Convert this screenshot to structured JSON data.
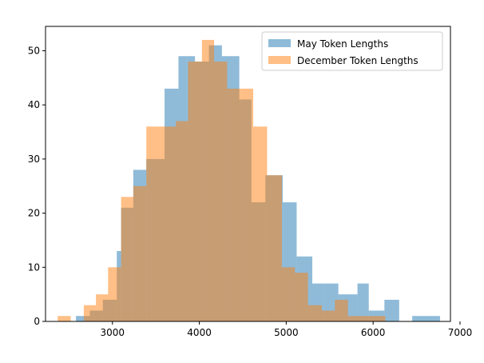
{
  "chart_data": {
    "type": "histogram",
    "title": "",
    "xlabel": "",
    "ylabel": "",
    "xlim": [
      2230,
      6890
    ],
    "ylim": [
      0,
      54.5
    ],
    "xticks": [
      3000,
      4000,
      5000,
      6000,
      7000
    ],
    "xtick_labels": [
      "3000",
      "4000",
      "5000",
      "6000",
      "7000"
    ],
    "yticks": [
      0,
      10,
      20,
      30,
      40,
      50
    ],
    "ytick_labels": [
      "0",
      "10",
      "20",
      "30",
      "40",
      "50"
    ],
    "legend_position": "upper right",
    "grid": false,
    "series": [
      {
        "name": "May Token Lengths",
        "color": "#1f77b4",
        "alpha": 0.5,
        "bin_edges": [
          2580,
          2740,
          2890,
          3050,
          3100,
          3240,
          3390,
          3600,
          3760,
          3860,
          3950,
          4110,
          4260,
          4460,
          4600,
          4760,
          4960,
          5120,
          5300,
          5430,
          5600,
          5820,
          5950,
          6130,
          6300,
          6450,
          6770
        ],
        "counts": [
          1,
          2,
          4,
          13,
          21,
          28,
          30,
          43,
          49,
          49,
          48,
          51,
          49,
          41,
          22,
          27,
          22,
          12,
          7,
          7,
          5,
          7,
          2,
          4,
          0,
          1
        ]
      },
      {
        "name": "December Token Lengths",
        "color": "#ff7f0e",
        "alpha": 0.5,
        "bin_edges": [
          2370,
          2520,
          2670,
          2810,
          2950,
          3100,
          3240,
          3390,
          3560,
          3730,
          3870,
          4030,
          4170,
          4320,
          4480,
          4620,
          4780,
          4950,
          5100,
          5250,
          5410,
          5560,
          5710,
          5860,
          6000,
          6140
        ],
        "counts": [
          1,
          0,
          3,
          5,
          10,
          23,
          25,
          36,
          36,
          37,
          48,
          52,
          48,
          43,
          43,
          36,
          27,
          10,
          9,
          3,
          2,
          4,
          1,
          1,
          1
        ]
      }
    ]
  }
}
